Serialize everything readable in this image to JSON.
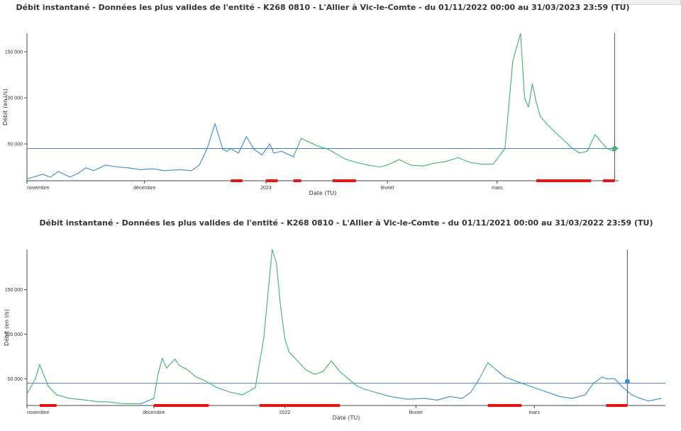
{
  "chart_data": [
    {
      "type": "line",
      "title": "Débit instantané - Données les plus valides de l'entité - K268 0810 - L'Allier à Vic-le-Comte - du 01/11/2022 00:00 au 31/03/2023 23:59 (TU)",
      "xlabel": "Date (TU)",
      "ylabel": "Débit (en l/s)",
      "x_tick_labels": [
        "novembre",
        "décembre",
        "2023",
        "février",
        "mars"
      ],
      "y_tick_labels": [
        "50 000",
        "100 000",
        "150 000"
      ],
      "x_range": [
        "2022-11-01",
        "2023-03-31"
      ],
      "ylim": [
        10000,
        170000
      ],
      "threshold": 45000,
      "grid": false,
      "series": [
        {
          "x": [
            "2022-11-01",
            "2022-11-05",
            "2022-11-07",
            "2022-11-09",
            "2022-11-12",
            "2022-11-14",
            "2022-11-16",
            "2022-11-18",
            "2022-11-21",
            "2022-11-24",
            "2022-11-27",
            "2022-11-30",
            "2022-12-03",
            "2022-12-06",
            "2022-12-10",
            "2022-12-13",
            "2022-12-15",
            "2022-12-17",
            "2022-12-19",
            "2022-12-21",
            "2022-12-22",
            "2022-12-23",
            "2022-12-25",
            "2022-12-27",
            "2022-12-29",
            "2022-12-31",
            "2023-01-02",
            "2023-01-03",
            "2023-01-05",
            "2023-01-08",
            "2023-01-10",
            "2023-01-12",
            "2023-01-14",
            "2023-01-17",
            "2023-01-21",
            "2023-01-24",
            "2023-01-27",
            "2023-01-30",
            "2023-02-01",
            "2023-02-04",
            "2023-02-07",
            "2023-02-10",
            "2023-02-13",
            "2023-02-16",
            "2023-02-19",
            "2023-02-22",
            "2023-02-25",
            "2023-02-28",
            "2023-03-03",
            "2023-03-05",
            "2023-03-07",
            "2023-03-08",
            "2023-03-09",
            "2023-03-10",
            "2023-03-11",
            "2023-03-12",
            "2023-03-14",
            "2023-03-17",
            "2023-03-20",
            "2023-03-22",
            "2023-03-24",
            "2023-03-26",
            "2023-03-27",
            "2023-03-29",
            "2023-03-31"
          ],
          "y": [
            12000,
            17000,
            14000,
            20000,
            14000,
            18000,
            24000,
            21000,
            27000,
            25000,
            24000,
            22000,
            23000,
            21000,
            22000,
            21000,
            27000,
            45000,
            72000,
            44000,
            42000,
            45000,
            40000,
            58000,
            44000,
            38000,
            50000,
            40000,
            42000,
            36000,
            56000,
            52000,
            48000,
            44000,
            34000,
            30000,
            27000,
            25000,
            27000,
            33000,
            27000,
            26000,
            29000,
            31000,
            35000,
            30000,
            28000,
            28000,
            45000,
            140000,
            170000,
            100000,
            90000,
            115000,
            95000,
            80000,
            70000,
            58000,
            46000,
            40000,
            42000,
            60000,
            55000,
            45000,
            42000
          ]
        }
      ]
    },
    {
      "type": "line",
      "title": "Débit instantané - Données les plus valides de l'entité - K268 0810 - L'Allier à Vic-le-Comte - du 01/11/2021 00:00 au 31/03/2022 23:59 (TU)",
      "xlabel": "Date (TU)",
      "ylabel": "Débit (en l/s)",
      "x_tick_labels": [
        "novembre",
        "décembre",
        "2022",
        "février",
        "mars"
      ],
      "y_tick_labels": [
        "50 000",
        "100 000",
        "150 000"
      ],
      "x_range": [
        "2021-11-01",
        "2022-03-31"
      ],
      "ylim": [
        20000,
        195000
      ],
      "threshold": 45000,
      "grid": false,
      "series": [
        {
          "x": [
            "2021-11-01",
            "2021-11-03",
            "2021-11-04",
            "2021-11-06",
            "2021-11-08",
            "2021-11-11",
            "2021-11-15",
            "2021-11-18",
            "2021-11-20",
            "2021-11-24",
            "2021-11-28",
            "2021-12-01",
            "2021-12-02",
            "2021-12-03",
            "2021-12-04",
            "2021-12-06",
            "2021-12-07",
            "2021-12-09",
            "2021-12-11",
            "2021-12-13",
            "2021-12-16",
            "2021-12-19",
            "2021-12-22",
            "2021-12-25",
            "2021-12-27",
            "2021-12-29",
            "2021-12-30",
            "2021-12-31",
            "2022-01-01",
            "2022-01-02",
            "2022-01-04",
            "2022-01-06",
            "2022-01-08",
            "2022-01-10",
            "2022-01-12",
            "2022-01-14",
            "2022-01-16",
            "2022-01-18",
            "2022-01-20",
            "2022-01-23",
            "2022-01-26",
            "2022-01-30",
            "2022-02-03",
            "2022-02-06",
            "2022-02-09",
            "2022-02-12",
            "2022-02-14",
            "2022-02-16",
            "2022-02-18",
            "2022-02-20",
            "2022-02-22",
            "2022-02-26",
            "2022-03-01",
            "2022-03-04",
            "2022-03-07",
            "2022-03-10",
            "2022-03-13",
            "2022-03-15",
            "2022-03-17",
            "2022-03-18",
            "2022-03-20",
            "2022-03-22",
            "2022-03-24",
            "2022-03-26",
            "2022-03-28",
            "2022-03-31"
          ],
          "y": [
            33000,
            50000,
            66000,
            42000,
            32000,
            28000,
            26000,
            24000,
            24000,
            22000,
            22000,
            28000,
            55000,
            73000,
            62000,
            72000,
            65000,
            60000,
            52000,
            48000,
            40000,
            35000,
            32000,
            40000,
            95000,
            195000,
            180000,
            130000,
            95000,
            80000,
            70000,
            60000,
            55000,
            58000,
            70000,
            58000,
            50000,
            42000,
            38000,
            34000,
            30000,
            27000,
            28000,
            26000,
            30000,
            28000,
            35000,
            50000,
            68000,
            60000,
            52000,
            45000,
            40000,
            35000,
            30000,
            28000,
            32000,
            45000,
            52000,
            50000,
            50000,
            40000,
            32000,
            28000,
            25000,
            28000
          ]
        }
      ]
    }
  ]
}
